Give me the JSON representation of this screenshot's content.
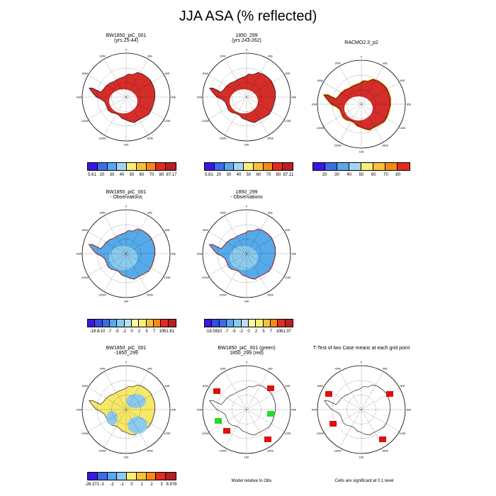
{
  "title": "JJA ASA (% reflected)",
  "colors": {
    "fill_red": "#d42d2a",
    "fill_lightblue": "#8ccbec",
    "fill_blue": "#55aaea",
    "fill_yellow": "#f7e86a",
    "sig_red": "#e01010",
    "sig_green": "#22dd22",
    "rim_orange": "#f39b1e",
    "rim_blue": "#3a72e8"
  },
  "chart_data": [
    {
      "type": "heatmap",
      "panel": "a",
      "title": "BW1850_piC_001",
      "subtitle": "(yrs 25-44)",
      "colorbar": "abs1"
    },
    {
      "type": "heatmap",
      "panel": "b",
      "title": "1850_299",
      "subtitle": "(yrs 243-262)",
      "colorbar": "abs2"
    },
    {
      "type": "heatmap",
      "panel": "c",
      "title": "RACMO2.3_p2",
      "subtitle": "",
      "colorbar": "abs3"
    },
    {
      "type": "heatmap",
      "panel": "d",
      "title": "BW1850_piC_001",
      "subtitle": "- Observations",
      "colorbar": "diff1"
    },
    {
      "type": "heatmap",
      "panel": "e",
      "title": "1850_299",
      "subtitle": "- Observations",
      "colorbar": "diff2"
    },
    {
      "type": "heatmap",
      "panel": "f",
      "title": "BW1850_piC_001",
      "subtitle": "-1850_299",
      "colorbar": "diff3"
    },
    {
      "type": "heatmap",
      "panel": "g",
      "title": "BW1850_piC_001 (green)",
      "subtitle": "1850_299 (red)",
      "note": "Model relative to Obs"
    },
    {
      "type": "heatmap",
      "panel": "h",
      "title": "T-Test of two Case means at each grid point",
      "subtitle": "",
      "note": "Cells are significant at 0.1 level"
    }
  ],
  "colorbars": {
    "abs1": {
      "labels": [
        "5.61",
        "20",
        "30",
        "40",
        "50",
        "60",
        "70",
        "80",
        "87.17"
      ],
      "colors": [
        "#3c16e6",
        "#3b6ee6",
        "#57a7f1",
        "#a5d4f1",
        "#f7ef77",
        "#f8c03a",
        "#f48a1c",
        "#e32b1e",
        "#b81f25"
      ]
    },
    "abs2": {
      "labels": [
        "5.61",
        "20",
        "30",
        "40",
        "50",
        "60",
        "70",
        "80",
        "87.11"
      ],
      "colors": [
        "#3c16e6",
        "#3b6ee6",
        "#57a7f1",
        "#a5d4f1",
        "#f7ef77",
        "#f8c03a",
        "#f48a1c",
        "#e32b1e",
        "#b81f25"
      ]
    },
    "abs3": {
      "labels": [
        "20",
        "30",
        "40",
        "50",
        "60",
        "70",
        "80"
      ],
      "colors": [
        "#3c16e6",
        "#3b6ee6",
        "#57a7f1",
        "#a5d4f1",
        "#f7ef77",
        "#f8c03a",
        "#f48a1c",
        "#e32b1e"
      ]
    },
    "diff1": {
      "labels": [
        "-18.8",
        "-10",
        "-7",
        "-5",
        "-2",
        "0",
        "2",
        "5",
        "7",
        "10",
        "61.61"
      ],
      "colors": [
        "#3c16e6",
        "#2f4fe4",
        "#3b6ee6",
        "#57a7f1",
        "#8ccbf0",
        "#b9dff3",
        "#fbf8a0",
        "#f7ef77",
        "#f8c03a",
        "#f48a1c",
        "#e32b1e",
        "#b81f25"
      ]
    },
    "diff2": {
      "labels": [
        "-18.59",
        "-10",
        "-7",
        "-5",
        "-2",
        "0",
        "2",
        "5",
        "7",
        "10",
        "61.37"
      ],
      "colors": [
        "#3c16e6",
        "#2f4fe4",
        "#3b6ee6",
        "#57a7f1",
        "#8ccbf0",
        "#b9dff3",
        "#fbf8a0",
        "#f7ef77",
        "#f8c03a",
        "#f48a1c",
        "#e32b1e",
        "#b81f25"
      ]
    },
    "diff3": {
      "labels": [
        "-26.371",
        "-3",
        "-2",
        "-1",
        "0",
        "1",
        "2",
        "3",
        "8.978"
      ],
      "colors": [
        "#3c16e6",
        "#3b6ee6",
        "#57a7f1",
        "#8ccbf0",
        "#f7ef77",
        "#f8c03a",
        "#f48a1c",
        "#e32b1e",
        "#b81f25"
      ]
    }
  },
  "lon_labels": [
    "0",
    "30E",
    "60E",
    "90E",
    "120E",
    "150E",
    "180",
    "150W",
    "120W",
    "90W",
    "60W",
    "30W"
  ]
}
